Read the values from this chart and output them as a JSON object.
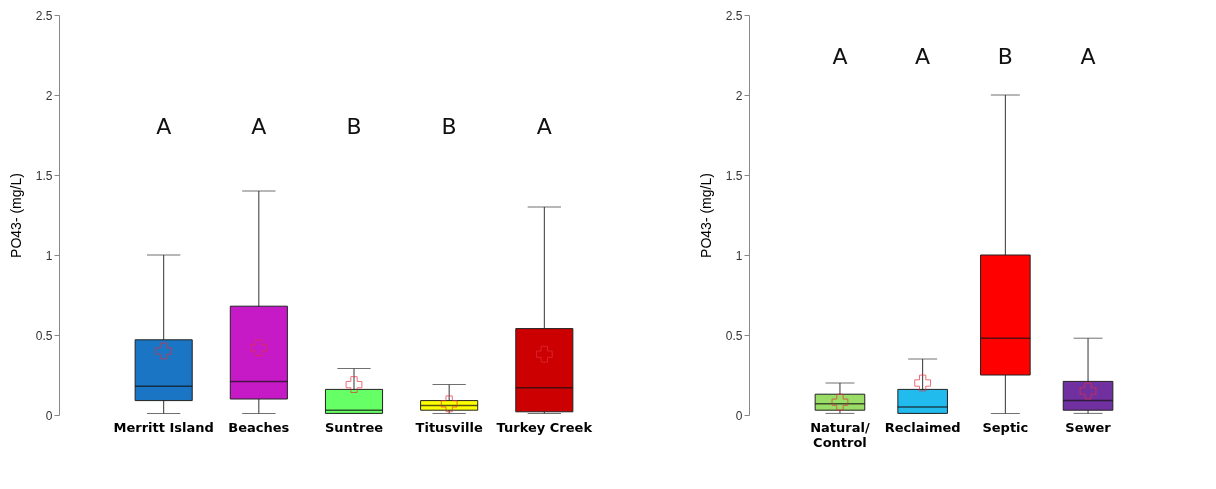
{
  "chart_data": [
    {
      "type": "box",
      "ylabel": "PO43- (mg/L)",
      "categories": [
        "Merritt Island",
        "Beaches",
        "Suntree",
        "Titusville",
        "Turkey Creek"
      ],
      "colors": [
        "#1a75c4",
        "#c71ac7",
        "#66ff66",
        "#ffff00",
        "#cc0000"
      ],
      "ylim": [
        0,
        2.5
      ],
      "yticks": [
        0,
        0.5,
        1,
        1.5,
        2,
        2.5
      ],
      "boxes": [
        {
          "low": 0.01,
          "q1": 0.09,
          "median": 0.18,
          "q3": 0.47,
          "high": 1.0,
          "mean": 0.4
        },
        {
          "low": 0.01,
          "q1": 0.1,
          "median": 0.21,
          "q3": 0.68,
          "high": 1.4,
          "mean": 0.42
        },
        {
          "low": 0.01,
          "q1": 0.01,
          "median": 0.03,
          "q3": 0.16,
          "high": 0.29,
          "mean": 0.19
        },
        {
          "low": 0.01,
          "q1": 0.03,
          "median": 0.06,
          "q3": 0.09,
          "high": 0.19,
          "mean": 0.07
        },
        {
          "low": 0.01,
          "q1": 0.02,
          "median": 0.17,
          "q3": 0.54,
          "high": 1.3,
          "mean": 0.38
        }
      ],
      "annotations": [
        "A",
        "A",
        "B",
        "B",
        "A"
      ]
    },
    {
      "type": "box",
      "ylabel": "PO43- (mg/L)",
      "categories": [
        "Natural/ Control",
        "Reclaimed",
        "Septic",
        "Sewer"
      ],
      "colors": [
        "#99dd66",
        "#22bbee",
        "#ff0000",
        "#7030a0"
      ],
      "ylim": [
        0,
        2.5
      ],
      "yticks": [
        0,
        0.5,
        1,
        1.5,
        2,
        2.5
      ],
      "boxes": [
        {
          "low": 0.01,
          "q1": 0.03,
          "median": 0.07,
          "q3": 0.13,
          "high": 0.2,
          "mean": 0.08
        },
        {
          "low": 0.01,
          "q1": 0.01,
          "median": 0.05,
          "q3": 0.16,
          "high": 0.35,
          "mean": 0.2
        },
        {
          "low": 0.01,
          "q1": 0.25,
          "median": 0.48,
          "q3": 1.0,
          "high": 2.0
        },
        {
          "low": 0.01,
          "q1": 0.03,
          "median": 0.09,
          "q3": 0.21,
          "high": 0.48,
          "mean": 0.15
        }
      ],
      "annotations": [
        "A",
        "A",
        "B",
        "A"
      ]
    }
  ]
}
